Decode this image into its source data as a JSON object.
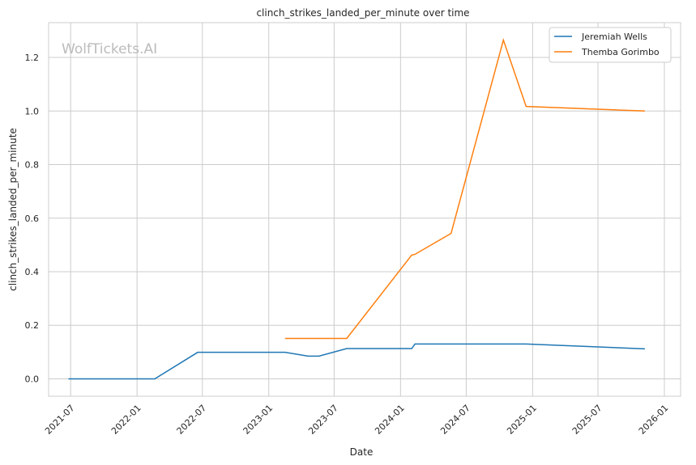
{
  "chart_data": {
    "type": "line",
    "title": "clinch_strikes_landed_per_minute over time",
    "xlabel": "Date",
    "ylabel": "clinch_strikes_landed_per_minute",
    "watermark": "WolfTickets.AI",
    "xlim": [
      "2021-05-01",
      "2026-02-15"
    ],
    "ylim": [
      -0.065,
      1.33
    ],
    "x_ticks": [
      "2021-07",
      "2022-01",
      "2022-07",
      "2023-01",
      "2023-07",
      "2024-01",
      "2024-07",
      "2025-01",
      "2025-07",
      "2026-01"
    ],
    "y_ticks": [
      "0.0",
      "0.2",
      "0.4",
      "0.6",
      "0.8",
      "1.0",
      "1.2"
    ],
    "grid": true,
    "legend_placement": "top-right",
    "series": [
      {
        "name": "Jeremiah Wells",
        "color": "#1f77b4",
        "x": [
          "2021-06-25",
          "2022-02-19",
          "2022-06-18",
          "2023-02-15",
          "2023-04-20",
          "2023-05-20",
          "2023-08-05",
          "2024-02-01",
          "2024-02-10",
          "2024-12-14",
          "2025-11-08"
        ],
        "y": [
          0.0,
          0.0,
          0.099,
          0.099,
          0.085,
          0.085,
          0.113,
          0.113,
          0.13,
          0.13,
          0.112
        ]
      },
      {
        "name": "Themba Gorimbo",
        "color": "#ff7f0e",
        "x": [
          "2023-02-15",
          "2023-08-05",
          "2024-02-01",
          "2024-02-10",
          "2024-05-20",
          "2024-10-12",
          "2024-12-14",
          "2025-11-08"
        ],
        "y": [
          0.151,
          0.151,
          0.462,
          0.465,
          0.543,
          1.265,
          1.017,
          1.0
        ]
      }
    ]
  }
}
